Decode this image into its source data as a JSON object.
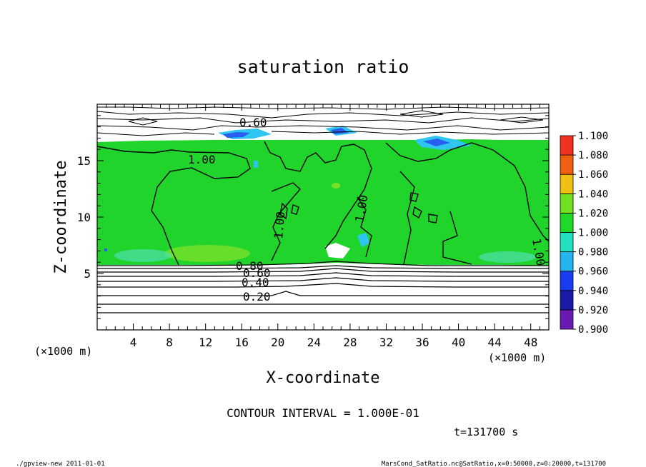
{
  "chart_data": {
    "type": "heatmap",
    "title": "saturation ratio",
    "xlabel": "X-coordinate",
    "ylabel": "Z-coordinate",
    "x_unit": "(×1000 m)",
    "y_unit": "(×1000 m)",
    "xlim": [
      0,
      50
    ],
    "ylim": [
      0,
      20
    ],
    "x_ticks": [
      4,
      8,
      12,
      16,
      20,
      24,
      28,
      32,
      36,
      40,
      44,
      48
    ],
    "y_ticks": [
      5,
      10,
      15
    ],
    "contour_interval_text": "CONTOUR INTERVAL = 1.000E-01",
    "time_text": "t=131700 s",
    "colorbar": {
      "levels": [
        0.9,
        0.92,
        0.94,
        0.96,
        0.98,
        1.0,
        1.02,
        1.04,
        1.06,
        1.08,
        1.1
      ],
      "labels": [
        "0.900",
        "0.920",
        "0.940",
        "0.960",
        "0.980",
        "1.000",
        "1.020",
        "1.040",
        "1.060",
        "1.080",
        "1.100"
      ],
      "colors": [
        "#6a1ab0",
        "#1a1aa8",
        "#1a3cf0",
        "#26b4f0",
        "#20e0c0",
        "#20d828",
        "#70e020",
        "#f0c010",
        "#f06010",
        "#f03020",
        "#f08080"
      ]
    },
    "contour_labels": [
      "0.60",
      "1.00",
      "1.00",
      "1.00",
      "1.00",
      "0.80",
      "0.60",
      "0.40",
      "0.20"
    ],
    "field_description": {
      "supersaturated_layer_z": [
        5.8,
        16.7
      ],
      "main_value": 1.0
    }
  },
  "footer": {
    "left": "./gpview-new   2011-01-01",
    "right": "MarsCond_SatRatio.nc@SatRatio,x=0:50000,z=0:20000,t=131700"
  },
  "colors": {
    "green": "#21d42b",
    "blue": "#2a5ef0",
    "cyan": "#2ec6f0"
  }
}
